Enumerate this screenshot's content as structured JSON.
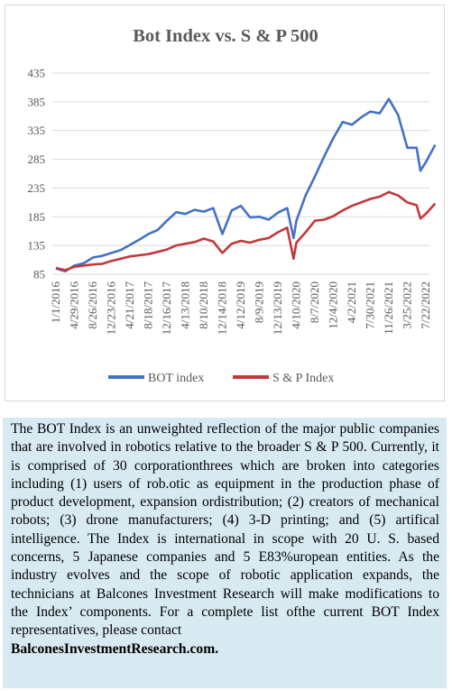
{
  "chart_data": {
    "type": "line",
    "title": "Bot Index vs. S & P 500",
    "xlabel": "",
    "ylabel": "",
    "ylim": [
      85,
      435
    ],
    "yticks": [
      85,
      135,
      185,
      235,
      285,
      335,
      385,
      435
    ],
    "xticks": [
      "1/1/2016",
      "4/29/2016",
      "8/26/2016",
      "12/23/2016",
      "4/21/2017",
      "8/18/2017",
      "12/16/2017",
      "4/13/2018",
      "8/10/2018",
      "12/14/2018",
      "4/12/2019",
      "8/9/2019",
      "12/13/2019",
      "4/10/2020",
      "8/7/2020",
      "12/4/2020",
      "4/2/2021",
      "7/30/2021",
      "11/26/2021",
      "3/25/2022",
      "7/22/2022"
    ],
    "grid": true,
    "legend": "bottom",
    "colors": {
      "bot": "#4472c4",
      "sp": "#c0393b"
    },
    "x": [
      "1/1/2016",
      "3/1/2016",
      "4/29/2016",
      "6/27/2016",
      "8/26/2016",
      "10/25/2016",
      "12/23/2016",
      "2/21/2017",
      "4/21/2017",
      "6/19/2017",
      "8/18/2017",
      "10/17/2017",
      "12/16/2017",
      "2/13/2018",
      "4/13/2018",
      "6/11/2018",
      "8/10/2018",
      "10/12/2018",
      "12/14/2018",
      "2/12/2019",
      "4/12/2019",
      "6/10/2019",
      "8/9/2019",
      "10/11/2019",
      "12/13/2019",
      "2/11/2020",
      "3/23/2020",
      "4/10/2020",
      "6/8/2020",
      "8/7/2020",
      "10/6/2020",
      "12/4/2020",
      "2/2/2021",
      "4/2/2021",
      "6/1/2021",
      "7/30/2021",
      "9/28/2021",
      "11/26/2021",
      "1/25/2022",
      "3/25/2022",
      "5/24/2022",
      "6/17/2022",
      "7/22/2022",
      "9/20/2022"
    ],
    "series": [
      {
        "name": "BOT index",
        "values": [
          95,
          90,
          100,
          104,
          114,
          117,
          122,
          127,
          136,
          145,
          155,
          162,
          178,
          193,
          190,
          197,
          194,
          200,
          155,
          196,
          204,
          184,
          185,
          180,
          192,
          200,
          148,
          178,
          222,
          255,
          290,
          322,
          350,
          345,
          358,
          368,
          365,
          390,
          362,
          305,
          305,
          265,
          280,
          310
        ]
      },
      {
        "name": "S & P Index",
        "values": [
          96,
          92,
          98,
          100,
          102,
          103,
          108,
          112,
          116,
          118,
          120,
          124,
          128,
          135,
          138,
          141,
          147,
          142,
          122,
          138,
          143,
          140,
          145,
          148,
          158,
          166,
          112,
          140,
          158,
          178,
          180,
          186,
          196,
          204,
          210,
          216,
          220,
          228,
          222,
          210,
          205,
          182,
          190,
          208
        ]
      }
    ]
  },
  "caption": {
    "text": "The BOT Index is an unweighted reflection of the major public companies that are involved in robotics relative to the broader S & P 500. Currently, it is comprised of 30 corporationthrees which are broken into categories including (1) users of rob.otic as equipment in the production phase of product development, expansion ordistribution; (2) creators of mechanical robots; (3) drone manufacturers; (4) 3-D printing; and (5) artifical intelligence. The Index is international in scope with 20 U. S. based concerns, 5 Japanese companies and 5 E83%uropean entities. As the industry evolves and the scope of robotic application expands, the technicians at Balcones Investment Research will make modifications to the Index’ components. For a complete list ofthe current BOT Index representatives, please contact",
    "contact": "BalconesInvestmentResearch.com."
  }
}
